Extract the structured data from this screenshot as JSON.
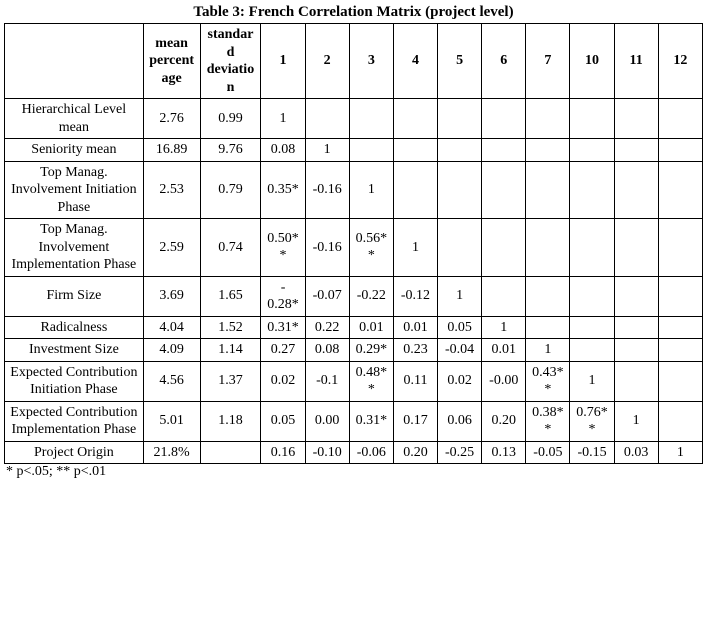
{
  "title": "Table 3: French Correlation Matrix (project level)",
  "footnote": "* p<.05; ** p<.01",
  "columns": {
    "rowlabel": "",
    "mean": "mean percent age",
    "std": "standar d deviatio n",
    "c1": "1",
    "c2": "2",
    "c3": "3",
    "c4": "4",
    "c5": "5",
    "c6": "6",
    "c7": "7",
    "c8": "10",
    "c9": "11",
    "c10": "12"
  },
  "rows": [
    {
      "label": "Hierarchical Level mean",
      "mean": "2.76",
      "std": "0.99",
      "c": [
        "1",
        "",
        "",
        "",
        "",
        "",
        "",
        "",
        "",
        ""
      ]
    },
    {
      "label": "Seniority mean",
      "mean": "16.89",
      "std": "9.76",
      "c": [
        "0.08",
        "1",
        "",
        "",
        "",
        "",
        "",
        "",
        "",
        ""
      ]
    },
    {
      "label": "Top Manag. Involvement Initiation Phase",
      "mean": "2.53",
      "std": "0.79",
      "c": [
        "0.35*",
        "-0.16",
        "1",
        "",
        "",
        "",
        "",
        "",
        "",
        ""
      ]
    },
    {
      "label": "Top Manag. Involvement Implementation Phase",
      "mean": "2.59",
      "std": "0.74",
      "c": [
        "0.50* *",
        "-0.16",
        "0.56* *",
        "1",
        "",
        "",
        "",
        "",
        "",
        ""
      ]
    },
    {
      "label": "Firm Size",
      "mean": "3.69",
      "std": "1.65",
      "c": [
        "- 0.28*",
        "-0.07",
        "-0.22",
        "-0.12",
        "1",
        "",
        "",
        "",
        "",
        ""
      ]
    },
    {
      "label": "Radicalness",
      "mean": "4.04",
      "std": "1.52",
      "c": [
        "0.31*",
        "0.22",
        "0.01",
        "0.01",
        "0.05",
        "1",
        "",
        "",
        "",
        ""
      ]
    },
    {
      "label": "Investment Size",
      "mean": "4.09",
      "std": "1.14",
      "c": [
        "0.27",
        "0.08",
        "0.29*",
        "0.23",
        "-0.04",
        "0.01",
        "1",
        "",
        "",
        ""
      ]
    },
    {
      "label": "Expected Contribution Initiation Phase",
      "mean": "4.56",
      "std": "1.37",
      "c": [
        "0.02",
        "-0.1",
        "0.48* *",
        "0.11",
        "0.02",
        "-0.00",
        "0.43* *",
        "1",
        "",
        ""
      ]
    },
    {
      "label": "Expected Contribution Implementation Phase",
      "mean": "5.01",
      "std": "1.18",
      "c": [
        "0.05",
        "0.00",
        "0.31*",
        "0.17",
        "0.06",
        "0.20",
        "0.38* *",
        "0.76* *",
        "1",
        ""
      ]
    },
    {
      "label": "Project Origin",
      "mean": "21.8%",
      "std": "",
      "c": [
        "0.16",
        "-0.10",
        "-0.06",
        "0.20",
        "-0.25",
        "0.13",
        "-0.05",
        "-0.15",
        "0.03",
        "1"
      ]
    }
  ]
}
